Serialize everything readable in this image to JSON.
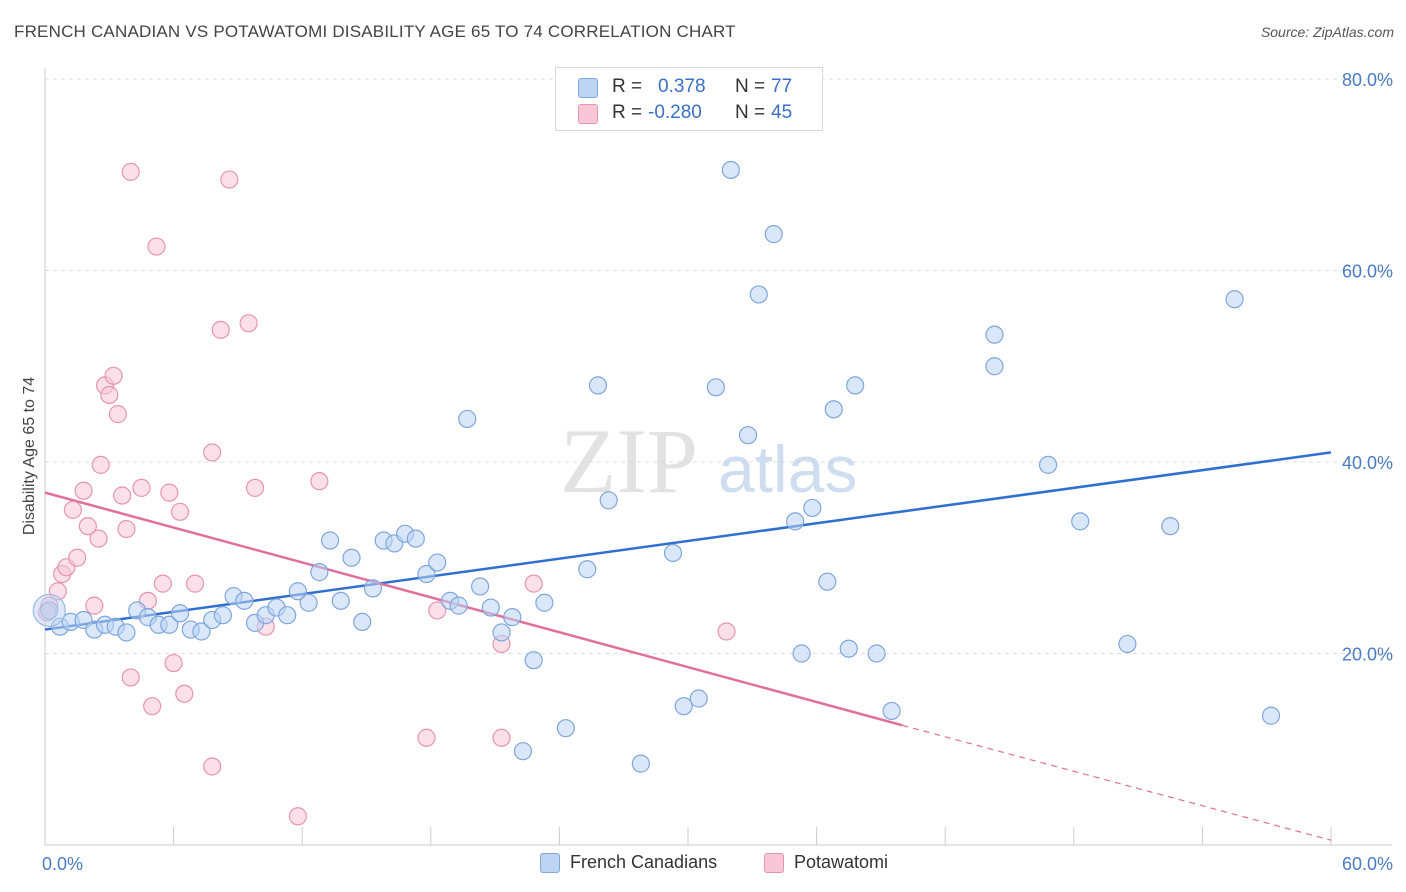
{
  "header": {
    "title": "FRENCH CANADIAN VS POTAWATOMI DISABILITY AGE 65 TO 74 CORRELATION CHART",
    "source": "Source: ZipAtlas.com"
  },
  "watermark": {
    "zip": "ZIP",
    "atlas": "atlas"
  },
  "legend": {
    "rows": [
      {
        "r_label": "R =",
        "r_value": "0.378",
        "n_label": "N =",
        "n_value": "77"
      },
      {
        "r_label": "R =",
        "r_value": "-0.280",
        "n_label": "N =",
        "n_value": "45"
      }
    ]
  },
  "bottom_legend": {
    "items": [
      "French Canadians",
      "Potawatomi"
    ]
  },
  "chart_data": {
    "type": "scatter",
    "title": "FRENCH CANADIAN VS POTAWATOMI DISABILITY AGE 65 TO 74 CORRELATION CHART",
    "xlabel": "",
    "ylabel": "Disability Age 65 to 74",
    "xlim": [
      0,
      60
    ],
    "ylim": [
      0,
      80
    ],
    "x_tick_labels": [
      "0.0%",
      "60.0%"
    ],
    "y_tick_labels": [
      "20.0%",
      "40.0%",
      "60.0%",
      "80.0%"
    ],
    "y_ticks": [
      20,
      40,
      60,
      80
    ],
    "grid": "horizontal dashed",
    "legend_position": "top-center",
    "colors": {
      "french_canadians": "#a9c6ee",
      "french_canadians_line": "#2f6fcf",
      "potawatomi": "#f5b8cc",
      "potawatomi_line": "#e0709a",
      "tick_text": "#4a7cc4"
    },
    "series": [
      {
        "name": "French Canadians",
        "r": 0.378,
        "n": 77,
        "trend": {
          "x": [
            0,
            60
          ],
          "y": [
            22.5,
            41.0
          ]
        },
        "points": [
          [
            0.2,
            24.5
          ],
          [
            0.7,
            22.8
          ],
          [
            1.2,
            23.3
          ],
          [
            1.8,
            23.5
          ],
          [
            2.3,
            22.5
          ],
          [
            2.8,
            23.0
          ],
          [
            3.3,
            22.8
          ],
          [
            3.8,
            22.2
          ],
          [
            4.3,
            24.5
          ],
          [
            4.8,
            23.8
          ],
          [
            5.3,
            23.0
          ],
          [
            5.8,
            23.0
          ],
          [
            6.3,
            24.2
          ],
          [
            6.8,
            22.5
          ],
          [
            7.3,
            22.3
          ],
          [
            7.8,
            23.5
          ],
          [
            8.3,
            24.0
          ],
          [
            8.8,
            26.0
          ],
          [
            9.3,
            25.5
          ],
          [
            9.8,
            23.2
          ],
          [
            10.3,
            24.0
          ],
          [
            10.8,
            24.8
          ],
          [
            11.3,
            24.0
          ],
          [
            11.8,
            26.5
          ],
          [
            12.3,
            25.3
          ],
          [
            12.8,
            28.5
          ],
          [
            13.3,
            31.8
          ],
          [
            13.8,
            25.5
          ],
          [
            14.3,
            30.0
          ],
          [
            14.8,
            23.3
          ],
          [
            15.3,
            26.8
          ],
          [
            15.8,
            31.8
          ],
          [
            16.3,
            31.5
          ],
          [
            16.8,
            32.5
          ],
          [
            17.3,
            32.0
          ],
          [
            17.8,
            28.3
          ],
          [
            18.3,
            29.5
          ],
          [
            18.9,
            25.5
          ],
          [
            19.3,
            25.0
          ],
          [
            19.7,
            44.5
          ],
          [
            20.3,
            27.0
          ],
          [
            20.8,
            24.8
          ],
          [
            21.3,
            22.2
          ],
          [
            21.8,
            23.8
          ],
          [
            22.3,
            9.8
          ],
          [
            22.8,
            19.3
          ],
          [
            23.3,
            25.3
          ],
          [
            24.3,
            12.2
          ],
          [
            25.3,
            28.8
          ],
          [
            25.8,
            48.0
          ],
          [
            26.3,
            36.0
          ],
          [
            27.8,
            8.5
          ],
          [
            29.3,
            30.5
          ],
          [
            29.8,
            14.5
          ],
          [
            30.5,
            15.3
          ],
          [
            31.3,
            47.8
          ],
          [
            32.8,
            42.8
          ],
          [
            32.0,
            70.5
          ],
          [
            33.3,
            57.5
          ],
          [
            34.0,
            63.8
          ],
          [
            35.0,
            33.8
          ],
          [
            35.3,
            20.0
          ],
          [
            35.8,
            35.2
          ],
          [
            36.5,
            27.5
          ],
          [
            36.8,
            45.5
          ],
          [
            37.5,
            20.5
          ],
          [
            37.8,
            48.0
          ],
          [
            38.8,
            20.0
          ],
          [
            39.5,
            14.0
          ],
          [
            44.3,
            53.3
          ],
          [
            44.3,
            50.0
          ],
          [
            46.8,
            39.7
          ],
          [
            48.3,
            33.8
          ],
          [
            50.5,
            21.0
          ],
          [
            52.5,
            33.3
          ],
          [
            55.5,
            57.0
          ],
          [
            57.2,
            13.5
          ]
        ]
      },
      {
        "name": "Potawatomi",
        "r": -0.28,
        "n": 45,
        "trend": {
          "x": [
            0,
            40
          ],
          "y": [
            36.8,
            12.5
          ]
        },
        "trend_extension": {
          "x": [
            40,
            60
          ],
          "y": [
            12.5,
            0.5
          ]
        },
        "points": [
          [
            0.2,
            25.0
          ],
          [
            0.6,
            26.5
          ],
          [
            0.8,
            28.3
          ],
          [
            1.0,
            29.0
          ],
          [
            1.3,
            35.0
          ],
          [
            1.5,
            30.0
          ],
          [
            1.8,
            37.0
          ],
          [
            2.0,
            33.3
          ],
          [
            2.3,
            25.0
          ],
          [
            2.5,
            32.0
          ],
          [
            2.6,
            39.7
          ],
          [
            2.8,
            48.0
          ],
          [
            3.0,
            47.0
          ],
          [
            3.2,
            49.0
          ],
          [
            3.4,
            45.0
          ],
          [
            3.6,
            36.5
          ],
          [
            3.8,
            33.0
          ],
          [
            4.0,
            17.5
          ],
          [
            4.0,
            70.3
          ],
          [
            4.5,
            37.3
          ],
          [
            4.8,
            25.5
          ],
          [
            5.0,
            14.5
          ],
          [
            5.2,
            62.5
          ],
          [
            5.5,
            27.3
          ],
          [
            5.8,
            36.8
          ],
          [
            6.0,
            19.0
          ],
          [
            6.3,
            34.8
          ],
          [
            6.5,
            15.8
          ],
          [
            7.0,
            27.3
          ],
          [
            7.8,
            41.0
          ],
          [
            7.8,
            8.2
          ],
          [
            8.2,
            53.8
          ],
          [
            8.6,
            69.5
          ],
          [
            9.5,
            54.5
          ],
          [
            9.8,
            37.3
          ],
          [
            10.3,
            22.8
          ],
          [
            11.8,
            3.0
          ],
          [
            12.8,
            38.0
          ],
          [
            17.8,
            11.2
          ],
          [
            18.3,
            24.5
          ],
          [
            21.3,
            21.0
          ],
          [
            21.3,
            11.2
          ],
          [
            22.8,
            27.3
          ],
          [
            31.8,
            22.3
          ],
          [
            0.1,
            24.3
          ]
        ]
      }
    ]
  }
}
